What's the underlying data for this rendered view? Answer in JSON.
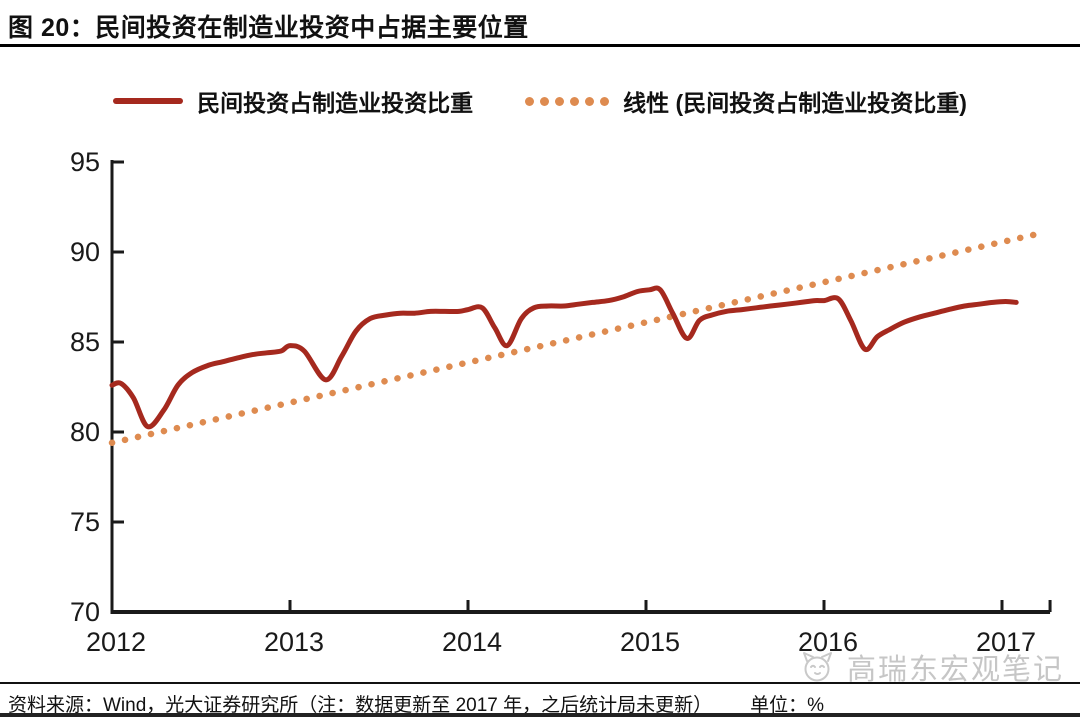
{
  "figure": {
    "title": "图 20：民间投资在制造业投资中占据主要位置",
    "source_note": "资料来源：Wind，光大证券研究所（注：数据更新至 2017 年，之后统计局未更新）",
    "unit_label": "单位：%",
    "watermark": "高瑞东宏观笔记",
    "watermark_icon": "cat-face-doodle",
    "colors": {
      "series_actual": "#A5291E",
      "series_trend": "#DE8B50",
      "axis": "#1a1a1a",
      "watermark_gray": "#c6c6c6"
    }
  },
  "chart_data": {
    "type": "line",
    "title": "民间投资在制造业投资中占据主要位置",
    "xlabel": "",
    "ylabel": "%",
    "ylim": [
      70,
      95
    ],
    "yticks": [
      70,
      75,
      80,
      85,
      90,
      95
    ],
    "xticks": [
      2012,
      2013,
      2014,
      2015,
      2016,
      2017
    ],
    "xlim": [
      2012,
      2017.27
    ],
    "grid": false,
    "legend_position": "top",
    "series": [
      {
        "name": "民间投资占制造业投资比重",
        "color": "#A5291E",
        "style": "solid",
        "points": [
          [
            2012.0,
            82.6
          ],
          [
            2012.05,
            82.7
          ],
          [
            2012.12,
            81.9
          ],
          [
            2012.2,
            80.3
          ],
          [
            2012.29,
            81.2
          ],
          [
            2012.37,
            82.6
          ],
          [
            2012.45,
            83.3
          ],
          [
            2012.54,
            83.7
          ],
          [
            2012.62,
            83.9
          ],
          [
            2012.7,
            84.1
          ],
          [
            2012.79,
            84.3
          ],
          [
            2012.87,
            84.4
          ],
          [
            2012.95,
            84.5
          ],
          [
            2013.0,
            84.8
          ],
          [
            2013.08,
            84.5
          ],
          [
            2013.2,
            82.9
          ],
          [
            2013.29,
            84.2
          ],
          [
            2013.37,
            85.6
          ],
          [
            2013.45,
            86.3
          ],
          [
            2013.54,
            86.5
          ],
          [
            2013.62,
            86.6
          ],
          [
            2013.7,
            86.6
          ],
          [
            2013.79,
            86.7
          ],
          [
            2013.87,
            86.7
          ],
          [
            2013.95,
            86.7
          ],
          [
            2014.0,
            86.8
          ],
          [
            2014.08,
            86.9
          ],
          [
            2014.15,
            85.8
          ],
          [
            2014.22,
            84.8
          ],
          [
            2014.3,
            86.3
          ],
          [
            2014.37,
            86.9
          ],
          [
            2014.45,
            87.0
          ],
          [
            2014.54,
            87.0
          ],
          [
            2014.62,
            87.1
          ],
          [
            2014.7,
            87.2
          ],
          [
            2014.79,
            87.3
          ],
          [
            2014.87,
            87.5
          ],
          [
            2014.95,
            87.8
          ],
          [
            2015.02,
            87.9
          ],
          [
            2015.08,
            87.9
          ],
          [
            2015.15,
            86.6
          ],
          [
            2015.23,
            85.2
          ],
          [
            2015.3,
            86.2
          ],
          [
            2015.37,
            86.5
          ],
          [
            2015.45,
            86.7
          ],
          [
            2015.54,
            86.8
          ],
          [
            2015.62,
            86.9
          ],
          [
            2015.7,
            87.0
          ],
          [
            2015.79,
            87.1
          ],
          [
            2015.87,
            87.2
          ],
          [
            2015.95,
            87.3
          ],
          [
            2016.0,
            87.3
          ],
          [
            2016.08,
            87.4
          ],
          [
            2016.15,
            86.2
          ],
          [
            2016.23,
            84.6
          ],
          [
            2016.3,
            85.3
          ],
          [
            2016.37,
            85.7
          ],
          [
            2016.45,
            86.1
          ],
          [
            2016.54,
            86.4
          ],
          [
            2016.62,
            86.6
          ],
          [
            2016.7,
            86.8
          ],
          [
            2016.79,
            87.0
          ],
          [
            2016.87,
            87.1
          ],
          [
            2016.95,
            87.2
          ],
          [
            2017.02,
            87.25
          ],
          [
            2017.08,
            87.2
          ]
        ]
      },
      {
        "name": "线性 (民间投资占制造业投资比重)",
        "color": "#DE8B50",
        "style": "dotted",
        "points": [
          [
            2012.0,
            79.4
          ],
          [
            2017.2,
            91.0
          ]
        ]
      }
    ]
  }
}
